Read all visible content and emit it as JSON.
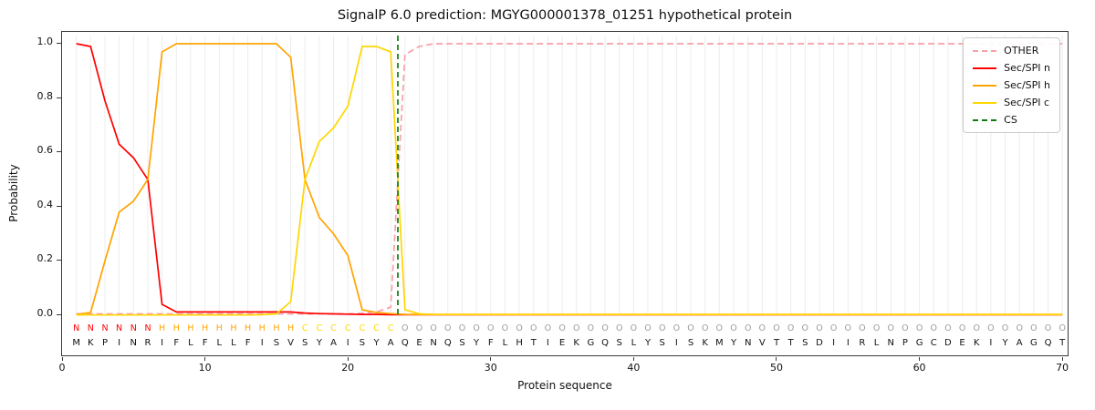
{
  "colors": {
    "grid": "#ececec",
    "axis": "#3a3a3a",
    "cs": "#107a10",
    "sequence_letter": "#111111"
  },
  "legend": {
    "items": [
      {
        "label": "OTHER",
        "color": "#f8a0a8",
        "dashed": true
      },
      {
        "label": "Sec/SPI n",
        "color": "#ff0000",
        "dashed": false
      },
      {
        "label": "Sec/SPI h",
        "color": "#ffa500",
        "dashed": false
      },
      {
        "label": "Sec/SPI c",
        "color": "#ffd700",
        "dashed": false
      },
      {
        "label": "CS",
        "color": "#107a10",
        "dashed": true
      }
    ]
  },
  "sequence": "MKPINRIFLFLLFISVSYAISYAQENQSYFLHTIEKGQSLYSISKMYNVTTSDIIRLNPGCDEKIYAGQT",
  "regions": [
    {
      "label": "N",
      "start": 1,
      "end": 6,
      "color": "#ff0000"
    },
    {
      "label": "H",
      "start": 7,
      "end": 16,
      "color": "#ffa500"
    },
    {
      "label": "C",
      "start": 17,
      "end": 23,
      "color": "#ffd700"
    },
    {
      "label": "O",
      "start": 24,
      "end": 70,
      "color": "#9b9b9b"
    }
  ],
  "chart_data": {
    "type": "line",
    "title": "SignalP 6.0 prediction: MGYG000001378_01251 hypothetical protein",
    "xlabel": "Protein sequence",
    "ylabel": "Probability",
    "xlim": [
      0,
      70.5
    ],
    "ylim": [
      0,
      1.04
    ],
    "x_start": 1,
    "x_step": 1,
    "grid": "vertical line per residue, light gray",
    "legend_position": "upper right",
    "x_ticks": [
      {
        "v": 0,
        "label": "0"
      },
      {
        "v": 10,
        "label": "10"
      },
      {
        "v": 20,
        "label": "20"
      },
      {
        "v": 30,
        "label": "30"
      },
      {
        "v": 40,
        "label": "40"
      },
      {
        "v": 50,
        "label": "50"
      },
      {
        "v": 60,
        "label": "60"
      },
      {
        "v": 70,
        "label": "70"
      }
    ],
    "y_ticks": [
      {
        "v": 0,
        "label": "0.0"
      },
      {
        "v": 0.2,
        "label": "0.2"
      },
      {
        "v": 0.4,
        "label": "0.4"
      },
      {
        "v": 0.6,
        "label": "0.6"
      },
      {
        "v": 0.8,
        "label": "0.8"
      },
      {
        "v": 1,
        "label": "1.0"
      }
    ],
    "cs_position": 23.5,
    "series": [
      {
        "name": "OTHER",
        "color": "#f8a0a8",
        "dashed": true,
        "values": [
          0.005,
          0.005,
          0.005,
          0.005,
          0.005,
          0.005,
          0.005,
          0.005,
          0.005,
          0.005,
          0.005,
          0.005,
          0.005,
          0.005,
          0.005,
          0.005,
          0.005,
          0.005,
          0.005,
          0.005,
          0.007,
          0.012,
          0.03,
          0.96,
          0.99,
          1
        ]
      },
      {
        "name": "Sec/SPI n",
        "color": "#ff0000",
        "dashed": false,
        "values": [
          1,
          0.99,
          0.79,
          0.63,
          0.58,
          0.5,
          0.04,
          0.012,
          0.012,
          0.012,
          0.012,
          0.012,
          0.012,
          0.012,
          0.012,
          0.012,
          0.008,
          0.006,
          0.005,
          0.004,
          0.003,
          0.003,
          0.002
        ]
      },
      {
        "name": "Sec/SPI h",
        "color": "#ffa500",
        "dashed": false,
        "values": [
          0.003,
          0.01,
          0.2,
          0.38,
          0.42,
          0.5,
          0.97,
          1,
          1,
          1,
          1,
          1,
          1,
          1,
          1,
          0.95,
          0.5,
          0.36,
          0.3,
          0.22,
          0.02,
          0.01,
          0.006,
          0.003
        ]
      },
      {
        "name": "Sec/SPI c",
        "color": "#ffd700",
        "dashed": false,
        "values": [
          0.001,
          0.001,
          0.001,
          0.001,
          0.001,
          0.001,
          0.001,
          0.001,
          0.001,
          0.001,
          0.001,
          0.001,
          0.001,
          0.002,
          0.005,
          0.05,
          0.5,
          0.64,
          0.69,
          0.77,
          0.99,
          0.99,
          0.97,
          0.02,
          0.005,
          0.003
        ]
      }
    ],
    "note": "series values are per-residue probabilities for positions 1..70; shorter arrays continue at their last value"
  }
}
